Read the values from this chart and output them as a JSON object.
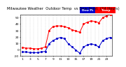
{
  "title": "Milwaukee Weather Outdoor Temperature vs Dew Point (24 Hours)",
  "temp_color": "#ff0000",
  "dew_color": "#0000cc",
  "background_color": "#ffffff",
  "ylim": [
    -10,
    55
  ],
  "xlim": [
    0.5,
    24.5
  ],
  "hours": [
    1,
    2,
    3,
    4,
    5,
    6,
    7,
    8,
    9,
    10,
    11,
    12,
    13,
    14,
    15,
    16,
    17,
    18,
    19,
    20,
    21,
    22,
    23,
    24
  ],
  "temp": [
    3,
    2,
    2,
    1,
    1,
    2,
    4,
    30,
    36,
    37,
    37,
    36,
    34,
    31,
    29,
    27,
    40,
    43,
    45,
    44,
    42,
    50,
    53,
    55
  ],
  "dew": [
    -4,
    -4,
    -5,
    -5,
    -5,
    -4,
    -3,
    9,
    14,
    17,
    19,
    17,
    9,
    4,
    -1,
    -6,
    4,
    7,
    9,
    7,
    4,
    14,
    17,
    19
  ],
  "grid_color": "#bbbbbb",
  "title_fontsize": 3.8,
  "tick_fontsize": 3.2,
  "dot_size": 1.2,
  "line_width": 0.7,
  "legend_temp_label": "Temp",
  "legend_dew_label": "Dew Pt",
  "ytick_values": [
    -10,
    0,
    10,
    20,
    30,
    40,
    50
  ],
  "ytick_labels": [
    "-10",
    "0",
    "10",
    "20",
    "30",
    "40",
    "50"
  ],
  "xtick_positions": [
    1,
    3,
    5,
    7,
    9,
    11,
    13,
    15,
    17,
    19,
    21,
    23
  ],
  "xtick_labels": [
    "1",
    "3",
    "5",
    "7",
    "9",
    "11",
    "13",
    "15",
    "17",
    "19",
    "21",
    "23"
  ]
}
